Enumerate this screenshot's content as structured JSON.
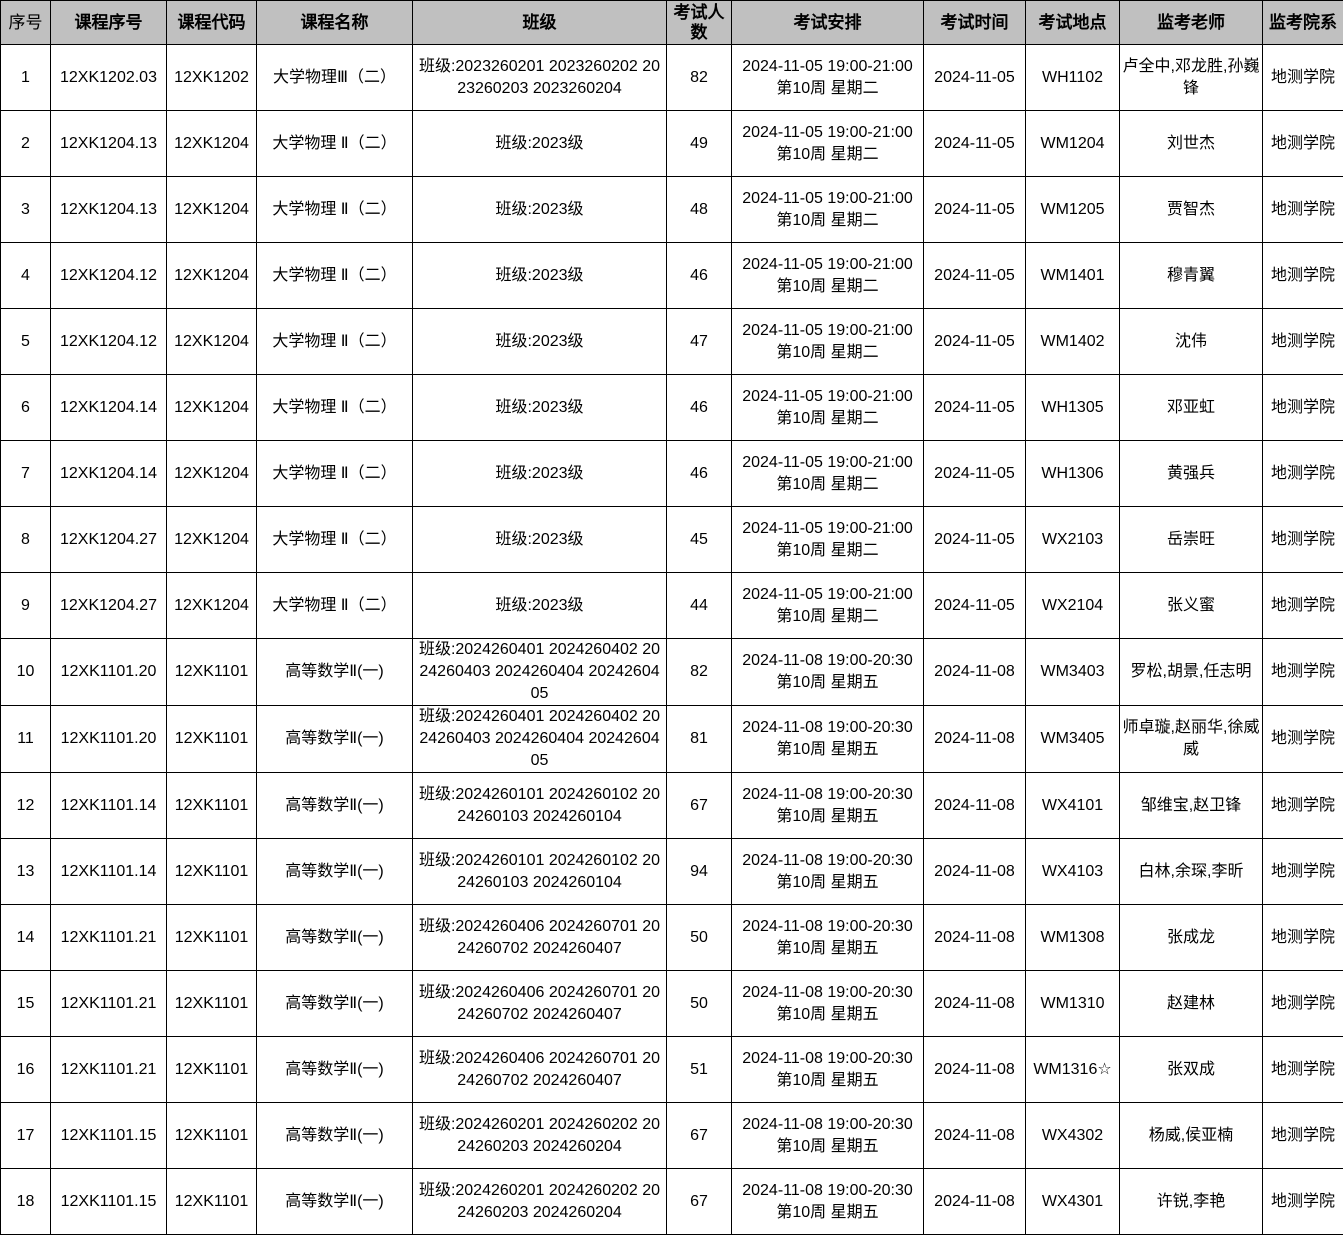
{
  "headers": [
    "序号",
    "课程序号",
    "课程代码",
    "课程名称",
    "班级",
    "考试人数",
    "考试安排",
    "考试时间",
    "考试地点",
    "监考老师",
    "监考院系"
  ],
  "rows": [
    [
      "1",
      "12XK1202.03",
      "12XK1202",
      "大学物理Ⅲ（二）",
      "班级:2023260201 2023260202 2023260203 2023260204",
      "82",
      "2024-11-05 19:00-21:00 第10周 星期二",
      "2024-11-05",
      "WH1102",
      "卢全中,邓龙胜,孙巍锋",
      "地测学院"
    ],
    [
      "2",
      "12XK1204.13",
      "12XK1204",
      "大学物理 Ⅱ（二）",
      "班级:2023级",
      "49",
      "2024-11-05 19:00-21:00 第10周 星期二",
      "2024-11-05",
      "WM1204",
      "刘世杰",
      "地测学院"
    ],
    [
      "3",
      "12XK1204.13",
      "12XK1204",
      "大学物理 Ⅱ（二）",
      "班级:2023级",
      "48",
      "2024-11-05 19:00-21:00 第10周 星期二",
      "2024-11-05",
      "WM1205",
      "贾智杰",
      "地测学院"
    ],
    [
      "4",
      "12XK1204.12",
      "12XK1204",
      "大学物理 Ⅱ（二）",
      "班级:2023级",
      "46",
      "2024-11-05 19:00-21:00 第10周 星期二",
      "2024-11-05",
      "WM1401",
      "穆青翼",
      "地测学院"
    ],
    [
      "5",
      "12XK1204.12",
      "12XK1204",
      "大学物理 Ⅱ（二）",
      "班级:2023级",
      "47",
      "2024-11-05 19:00-21:00 第10周 星期二",
      "2024-11-05",
      "WM1402",
      "沈伟",
      "地测学院"
    ],
    [
      "6",
      "12XK1204.14",
      "12XK1204",
      "大学物理 Ⅱ（二）",
      "班级:2023级",
      "46",
      "2024-11-05 19:00-21:00 第10周 星期二",
      "2024-11-05",
      "WH1305",
      "邓亚虹",
      "地测学院"
    ],
    [
      "7",
      "12XK1204.14",
      "12XK1204",
      "大学物理 Ⅱ（二）",
      "班级:2023级",
      "46",
      "2024-11-05 19:00-21:00 第10周 星期二",
      "2024-11-05",
      "WH1306",
      "黄强兵",
      "地测学院"
    ],
    [
      "8",
      "12XK1204.27",
      "12XK1204",
      "大学物理 Ⅱ（二）",
      "班级:2023级",
      "45",
      "2024-11-05 19:00-21:00 第10周 星期二",
      "2024-11-05",
      "WX2103",
      "岳崇旺",
      "地测学院"
    ],
    [
      "9",
      "12XK1204.27",
      "12XK1204",
      "大学物理 Ⅱ（二）",
      "班级:2023级",
      "44",
      "2024-11-05 19:00-21:00 第10周 星期二",
      "2024-11-05",
      "WX2104",
      "张义蜜",
      "地测学院"
    ],
    [
      "10",
      "12XK1101.20",
      "12XK1101",
      "高等数学Ⅱ(一)",
      "班级:2024260401 2024260402 2024260403 2024260404 2024260405",
      "82",
      "2024-11-08 19:00-20:30 第10周 星期五",
      "2024-11-08",
      "WM3403",
      "罗松,胡景,任志明",
      "地测学院"
    ],
    [
      "11",
      "12XK1101.20",
      "12XK1101",
      "高等数学Ⅱ(一)",
      "班级:2024260401 2024260402 2024260403 2024260404 2024260405",
      "81",
      "2024-11-08 19:00-20:30 第10周 星期五",
      "2024-11-08",
      "WM3405",
      "师卓璇,赵丽华,徐威威",
      "地测学院"
    ],
    [
      "12",
      "12XK1101.14",
      "12XK1101",
      "高等数学Ⅱ(一)",
      "班级:2024260101 2024260102 2024260103 2024260104",
      "67",
      "2024-11-08 19:00-20:30 第10周 星期五",
      "2024-11-08",
      "WX4101",
      "邹维宝,赵卫锋",
      "地测学院"
    ],
    [
      "13",
      "12XK1101.14",
      "12XK1101",
      "高等数学Ⅱ(一)",
      "班级:2024260101 2024260102 2024260103 2024260104",
      "94",
      "2024-11-08 19:00-20:30 第10周 星期五",
      "2024-11-08",
      "WX4103",
      "白林,余琛,李昕",
      "地测学院"
    ],
    [
      "14",
      "12XK1101.21",
      "12XK1101",
      "高等数学Ⅱ(一)",
      "班级:2024260406 2024260701 2024260702 2024260407",
      "50",
      "2024-11-08 19:00-20:30 第10周 星期五",
      "2024-11-08",
      "WM1308",
      "张成龙",
      "地测学院"
    ],
    [
      "15",
      "12XK1101.21",
      "12XK1101",
      "高等数学Ⅱ(一)",
      "班级:2024260406 2024260701 2024260702 2024260407",
      "50",
      "2024-11-08 19:00-20:30 第10周 星期五",
      "2024-11-08",
      "WM1310",
      "赵建林",
      "地测学院"
    ],
    [
      "16",
      "12XK1101.21",
      "12XK1101",
      "高等数学Ⅱ(一)",
      "班级:2024260406 2024260701 2024260702 2024260407",
      "51",
      "2024-11-08 19:00-20:30 第10周 星期五",
      "2024-11-08",
      "WM1316☆",
      "张双成",
      "地测学院"
    ],
    [
      "17",
      "12XK1101.15",
      "12XK1101",
      "高等数学Ⅱ(一)",
      "班级:2024260201 2024260202 2024260203 2024260204",
      "67",
      "2024-11-08 19:00-20:30 第10周 星期五",
      "2024-11-08",
      "WX4302",
      "杨威,侯亚楠",
      "地测学院"
    ],
    [
      "18",
      "12XK1101.15",
      "12XK1101",
      "高等数学Ⅱ(一)",
      "班级:2024260201 2024260202 2024260203 2024260204",
      "67",
      "2024-11-08 19:00-20:30 第10周 星期五",
      "2024-11-08",
      "WX4301",
      "许锐,李艳",
      "地测学院"
    ]
  ]
}
